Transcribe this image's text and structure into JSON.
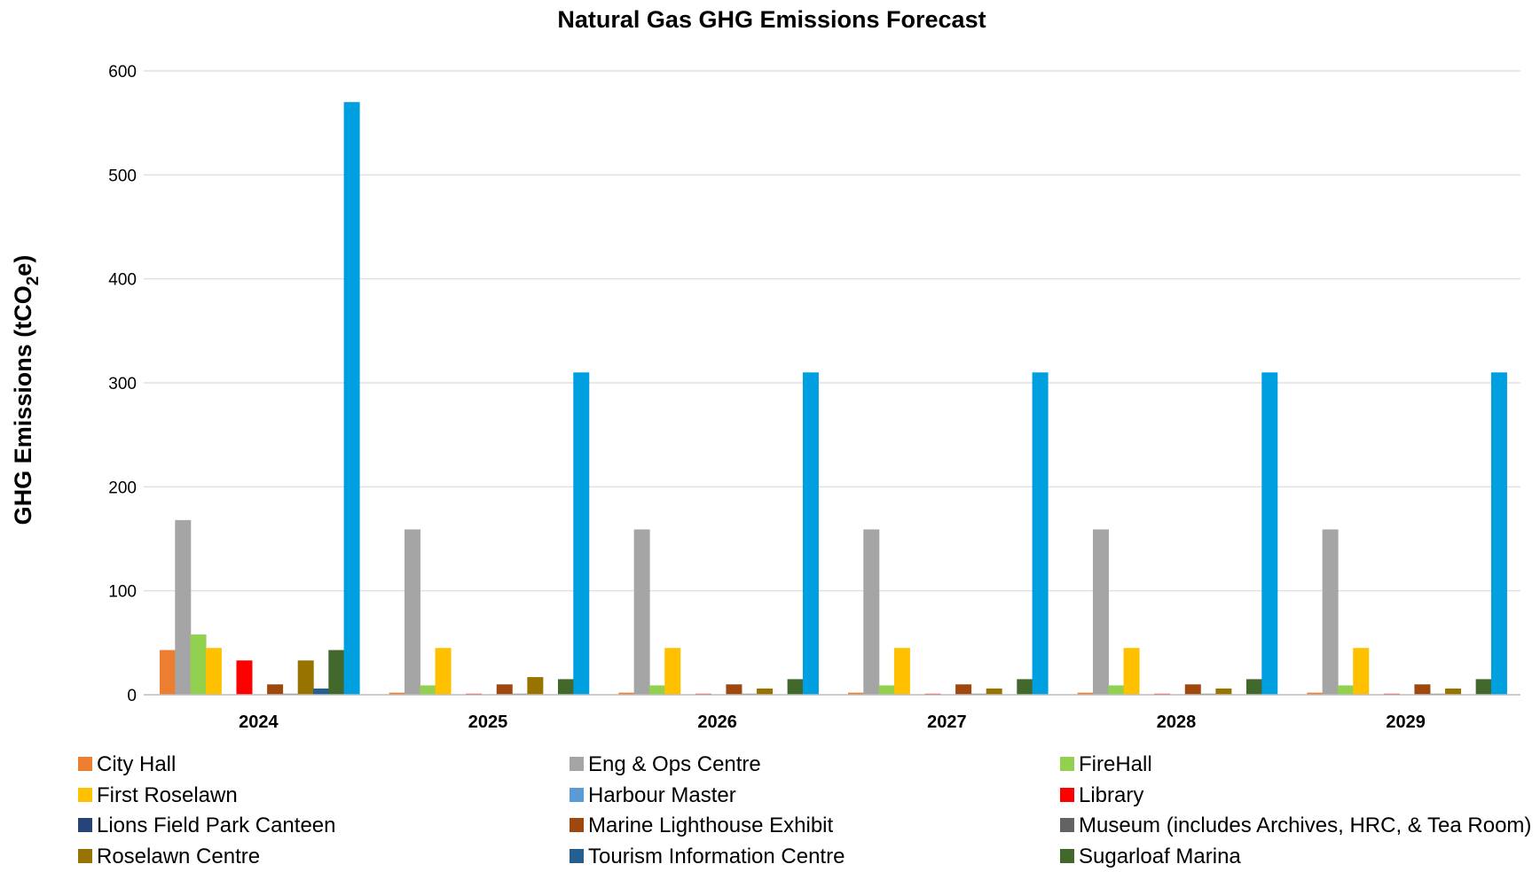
{
  "chart_data": {
    "type": "bar",
    "title": "Natural Gas GHG Emissions Forecast",
    "ylabel": "GHG Emissions (tCO2e)",
    "ylabel_prefix": "GHG Emissions (tCO",
    "ylabel_subscript": "2",
    "ylabel_suffix": "e)",
    "xlabel": "",
    "categories": [
      "2024",
      "2025",
      "2026",
      "2027",
      "2028",
      "2029"
    ],
    "ylim": [
      0,
      600
    ],
    "yticks": [
      0,
      100,
      200,
      300,
      400,
      500,
      600
    ],
    "grid": true,
    "legend_placement": "bottom",
    "series": [
      {
        "name": "City Hall",
        "color": "#ED7D31",
        "values": [
          43,
          2,
          2,
          2,
          2,
          2
        ]
      },
      {
        "name": "Eng & Ops Centre",
        "color": "#A5A5A5",
        "values": [
          168,
          159,
          159,
          159,
          159,
          159
        ]
      },
      {
        "name": "FireHall",
        "color": "#92D050",
        "values": [
          58,
          9,
          9,
          9,
          9,
          9
        ]
      },
      {
        "name": "First Roselawn",
        "color": "#FFC000",
        "values": [
          45,
          45,
          45,
          45,
          45,
          45
        ]
      },
      {
        "name": "Harbour Master",
        "color": "#5B9BD5",
        "values": [
          0,
          0,
          0,
          0,
          0,
          0
        ]
      },
      {
        "name": "Library",
        "color": "#FF0000",
        "values": [
          33,
          1,
          1,
          1,
          1,
          1
        ]
      },
      {
        "name": "Lions Field Park Canteen",
        "color": "#264478",
        "values": [
          0,
          0,
          0,
          0,
          0,
          0
        ]
      },
      {
        "name": "Marine Lighthouse Exhibit",
        "color": "#9E480E",
        "values": [
          10,
          10,
          10,
          10,
          10,
          10
        ]
      },
      {
        "name": "Museum (includes Archives, HRC, & Tea Room)",
        "color": "#636363",
        "values": [
          1,
          1,
          1,
          1,
          1,
          1
        ]
      },
      {
        "name": "Roselawn Centre",
        "color": "#997300",
        "values": [
          33,
          17,
          6,
          6,
          6,
          6
        ]
      },
      {
        "name": "Tourism Information Centre",
        "color": "#255E91",
        "values": [
          6,
          0,
          0,
          0,
          0,
          0
        ]
      },
      {
        "name": "Sugarloaf Marina",
        "color": "#43682B",
        "values": [
          43,
          15,
          15,
          15,
          15,
          15
        ]
      },
      {
        "name": "",
        "color": "#009FDF",
        "values": [
          570,
          310,
          310,
          310,
          310,
          310
        ]
      }
    ],
    "legend": [
      [
        "City Hall",
        "Eng & Ops Centre",
        "FireHall"
      ],
      [
        "First Roselawn",
        "Harbour Master",
        "Library"
      ],
      [
        "Lions Field Park Canteen",
        "Marine Lighthouse Exhibit",
        "Museum (includes Archives, HRC, & Tea Room)"
      ],
      [
        "Roselawn Centre",
        "Tourism Information Centre",
        "Sugarloaf Marina"
      ]
    ]
  }
}
